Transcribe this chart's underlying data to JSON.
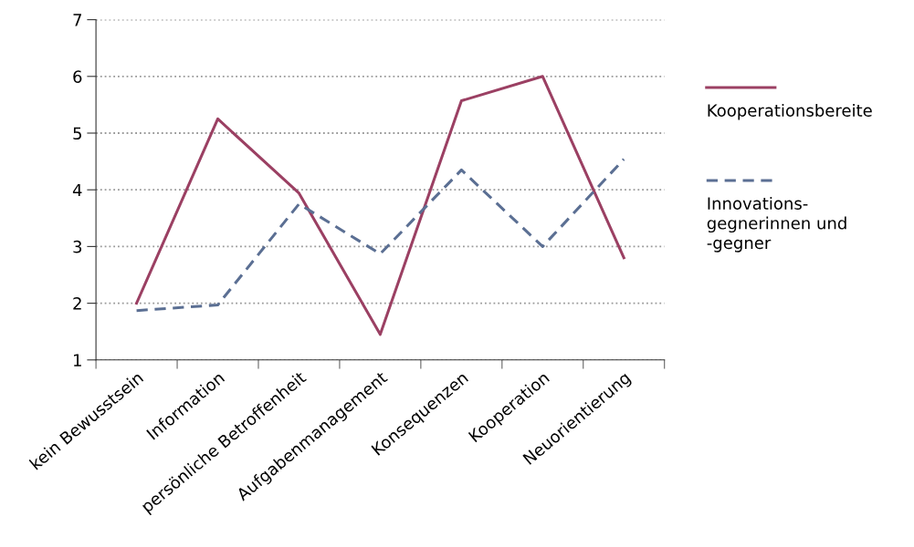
{
  "chart_data": {
    "type": "line",
    "categories": [
      "kein Bewusstsein",
      "Information",
      "persönliche Betroffenheit",
      "Aufgabenmanagement",
      "Konsequenzen",
      "Kooperation",
      "Neuorientierung"
    ],
    "series": [
      {
        "name": "Kooperationsbereite",
        "color": "#9b4063",
        "line_style": "solid",
        "values": [
          2.0,
          5.25,
          3.94,
          1.45,
          5.57,
          6.0,
          2.8
        ]
      },
      {
        "name": "Innovations-\ngegnerinnen und\n-gegner",
        "color": "#5b6f93",
        "line_style": "dashed",
        "values": [
          1.87,
          1.97,
          3.75,
          2.87,
          4.35,
          3.0,
          4.54
        ]
      }
    ],
    "ylim": [
      1,
      7
    ],
    "yticks": [
      1,
      2,
      3,
      4,
      5,
      6,
      7
    ],
    "grid": "y",
    "legend": "right",
    "marker": "none"
  }
}
